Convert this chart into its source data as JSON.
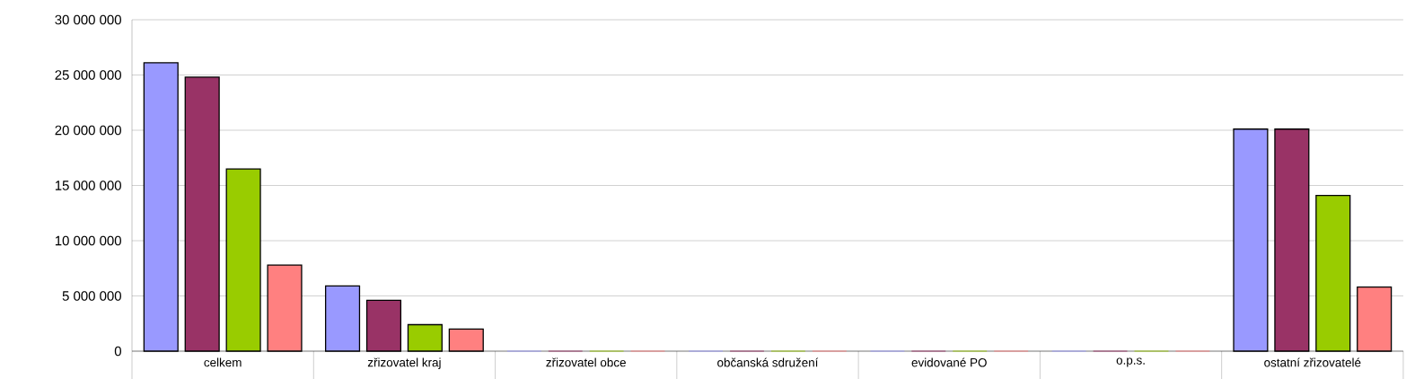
{
  "chart_data": {
    "type": "bar",
    "categories": [
      "celkem",
      "zřizovatel kraj",
      "zřizovatel obce",
      "občanská sdružení",
      "evidované PO",
      "o.p.s.",
      "ostatní zřizovatelé"
    ],
    "series": [
      {
        "color": "#9999ff",
        "values": [
          26100000,
          5900000,
          0,
          0,
          0,
          0,
          20100000
        ]
      },
      {
        "color": "#993366",
        "values": [
          24800000,
          4600000,
          0,
          0,
          0,
          0,
          20100000
        ]
      },
      {
        "color": "#99cc00",
        "values": [
          16500000,
          2400000,
          0,
          0,
          0,
          0,
          14100000
        ]
      },
      {
        "color": "#ff8080",
        "values": [
          7800000,
          2000000,
          0,
          0,
          0,
          0,
          5800000
        ]
      }
    ],
    "ylim": [
      0,
      30000000
    ],
    "yticks": [
      {
        "value": 0,
        "label": "0"
      },
      {
        "value": 5000000,
        "label": "5 000 000"
      },
      {
        "value": 10000000,
        "label": "10 000 000"
      },
      {
        "value": 15000000,
        "label": "15 000 000"
      },
      {
        "value": 20000000,
        "label": "20 000 000"
      },
      {
        "value": 25000000,
        "label": "25 000 000"
      },
      {
        "value": 30000000,
        "label": "30 000 000"
      }
    ],
    "grid": "y"
  }
}
